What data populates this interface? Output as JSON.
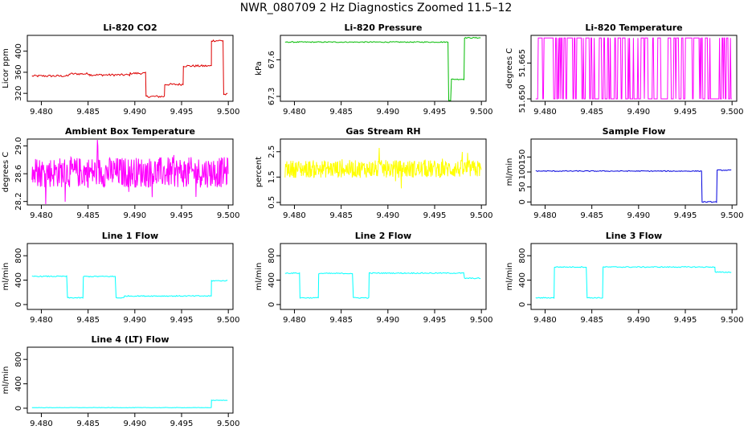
{
  "page": {
    "title": "NWR_080709  2 Hz Diagnostics Zoomed 11.5–12"
  },
  "chart_data": [
    {
      "type": "line",
      "title": "Li-820 CO2",
      "ylabel": "Licor ppm",
      "color": "#dd0000",
      "xlim": [
        9.4785,
        9.5005
      ],
      "ylim": [
        305,
        430
      ],
      "xticks": [
        "9.480",
        "9.485",
        "9.490",
        "9.495",
        "9.500"
      ],
      "yticks": [
        "320",
        "360",
        "400"
      ],
      "series": [
        {
          "name": "CO2",
          "kind": "step",
          "x": [
            9.4785,
            9.483,
            9.4852,
            9.4895,
            9.4912,
            9.4932,
            9.4952,
            9.4982,
            9.4995
          ],
          "y": [
            353,
            357,
            355,
            358,
            314,
            337,
            372,
            420,
            318
          ],
          "noise": 2
        }
      ]
    },
    {
      "type": "line",
      "title": "Li-820 Pressure",
      "ylabel": "kPa",
      "color": "#00bb00",
      "xlim": [
        9.4785,
        9.5005
      ],
      "ylim": [
        67.26,
        67.8
      ],
      "xticks": [
        "9.480",
        "9.485",
        "9.490",
        "9.495",
        "9.500"
      ],
      "yticks": [
        "67.3",
        "67.6"
      ],
      "series": [
        {
          "name": "Pressure",
          "kind": "step",
          "x": [
            9.4785,
            9.4965,
            9.4968,
            9.4982,
            9.4995
          ],
          "y": [
            67.745,
            67.26,
            67.44,
            67.78,
            67.78
          ],
          "noise": 0.004
        }
      ]
    },
    {
      "type": "line",
      "title": "Li-820 Temperature",
      "ylabel": "degrees C",
      "color": "#ff00ff",
      "xlim": [
        9.4785,
        9.5005
      ],
      "ylim": [
        51.649,
        51.6766
      ],
      "xticks": [
        "9.480",
        "9.485",
        "9.490",
        "9.495",
        "9.500"
      ],
      "yticks": [
        "51.650",
        "51.665"
      ],
      "series": [
        {
          "name": "Temperature",
          "kind": "binary",
          "y": [
            51.65,
            51.6755
          ]
        }
      ]
    },
    {
      "type": "line",
      "title": "Ambient Box Temperature",
      "ylabel": "degrees C",
      "color": "#ff00ff",
      "xlim": [
        9.4785,
        9.5005
      ],
      "ylim": [
        28.15,
        29.1
      ],
      "xticks": [
        "9.480",
        "9.485",
        "9.490",
        "9.495",
        "9.500"
      ],
      "yticks": [
        "28.2",
        "28.6",
        "29.0"
      ],
      "series": [
        {
          "name": "Ambient Temp",
          "kind": "noise",
          "mean": 28.62,
          "amp": 0.22
        }
      ]
    },
    {
      "type": "line",
      "title": "Gas Stream RH",
      "ylabel": "percent",
      "color": "#ffff00",
      "xlim": [
        9.4785,
        9.5005
      ],
      "ylim": [
        0.4,
        3.0
      ],
      "xticks": [
        "9.480",
        "9.485",
        "9.490",
        "9.495",
        "9.500"
      ],
      "yticks": [
        "0.5",
        "1.5",
        "2.5"
      ],
      "series": [
        {
          "name": "RH",
          "kind": "noise",
          "mean": 1.82,
          "amp": 0.35
        }
      ]
    },
    {
      "type": "line",
      "title": "Sample Flow",
      "ylabel": "ml/min",
      "color": "#0000dd",
      "xlim": [
        9.4785,
        9.5005
      ],
      "ylim": [
        -10,
        210
      ],
      "xticks": [
        "9.480",
        "9.485",
        "9.490",
        "9.495",
        "9.500"
      ],
      "yticks": [
        "0",
        "50",
        "100",
        "150"
      ],
      "series": [
        {
          "name": "Sample Flow",
          "kind": "step",
          "x": [
            9.4785,
            9.4968,
            9.4984,
            9.4995
          ],
          "y": [
            103,
            0,
            106,
            106
          ],
          "noise": 1.5
        }
      ]
    },
    {
      "type": "line",
      "title": "Line 1 Flow",
      "ylabel": "ml/min",
      "color": "#00ffff",
      "xlim": [
        9.4785,
        9.5005
      ],
      "ylim": [
        -80,
        1000
      ],
      "xticks": [
        "9.480",
        "9.485",
        "9.490",
        "9.495",
        "9.500"
      ],
      "yticks": [
        "0",
        "400",
        "800"
      ],
      "series": [
        {
          "name": "Line 1",
          "kind": "step",
          "x": [
            9.4785,
            9.4828,
            9.4845,
            9.488,
            9.4889,
            9.4982,
            9.4995
          ],
          "y": [
            462,
            110,
            460,
            110,
            140,
            390,
            390
          ],
          "noise": 8
        }
      ]
    },
    {
      "type": "line",
      "title": "Line 2 Flow",
      "ylabel": "ml/min",
      "color": "#00ffff",
      "xlim": [
        9.4785,
        9.5005
      ],
      "ylim": [
        -80,
        1000
      ],
      "xticks": [
        "9.480",
        "9.485",
        "9.490",
        "9.495",
        "9.500"
      ],
      "yticks": [
        "0",
        "400",
        "800"
      ],
      "series": [
        {
          "name": "Line 2",
          "kind": "step",
          "x": [
            9.4785,
            9.4806,
            9.4826,
            9.4863,
            9.488,
            9.4982,
            9.4995
          ],
          "y": [
            515,
            110,
            510,
            110,
            515,
            430,
            430
          ],
          "noise": 8
        }
      ]
    },
    {
      "type": "line",
      "title": "Line 3 Flow",
      "ylabel": "ml/min",
      "color": "#00ffff",
      "xlim": [
        9.4785,
        9.5005
      ],
      "ylim": [
        -80,
        1000
      ],
      "xticks": [
        "9.480",
        "9.485",
        "9.490",
        "9.495",
        "9.500"
      ],
      "yticks": [
        "0",
        "400",
        "800"
      ],
      "series": [
        {
          "name": "Line 3",
          "kind": "step",
          "x": [
            9.4785,
            9.481,
            9.4845,
            9.4862,
            9.4982,
            9.4995
          ],
          "y": [
            110,
            615,
            110,
            615,
            530,
            530
          ],
          "noise": 8
        }
      ]
    },
    {
      "type": "line",
      "title": "Line 4 (LT) Flow",
      "ylabel": "ml/min",
      "color": "#00ffff",
      "xlim": [
        9.4785,
        9.5005
      ],
      "ylim": [
        -80,
        1000
      ],
      "xticks": [
        "9.480",
        "9.485",
        "9.490",
        "9.495",
        "9.500"
      ],
      "yticks": [
        "0",
        "400",
        "800"
      ],
      "series": [
        {
          "name": "Line 4",
          "kind": "step",
          "x": [
            9.4785,
            9.4982,
            9.4995
          ],
          "y": [
            10,
            130,
            130
          ],
          "noise": 3
        }
      ]
    }
  ]
}
